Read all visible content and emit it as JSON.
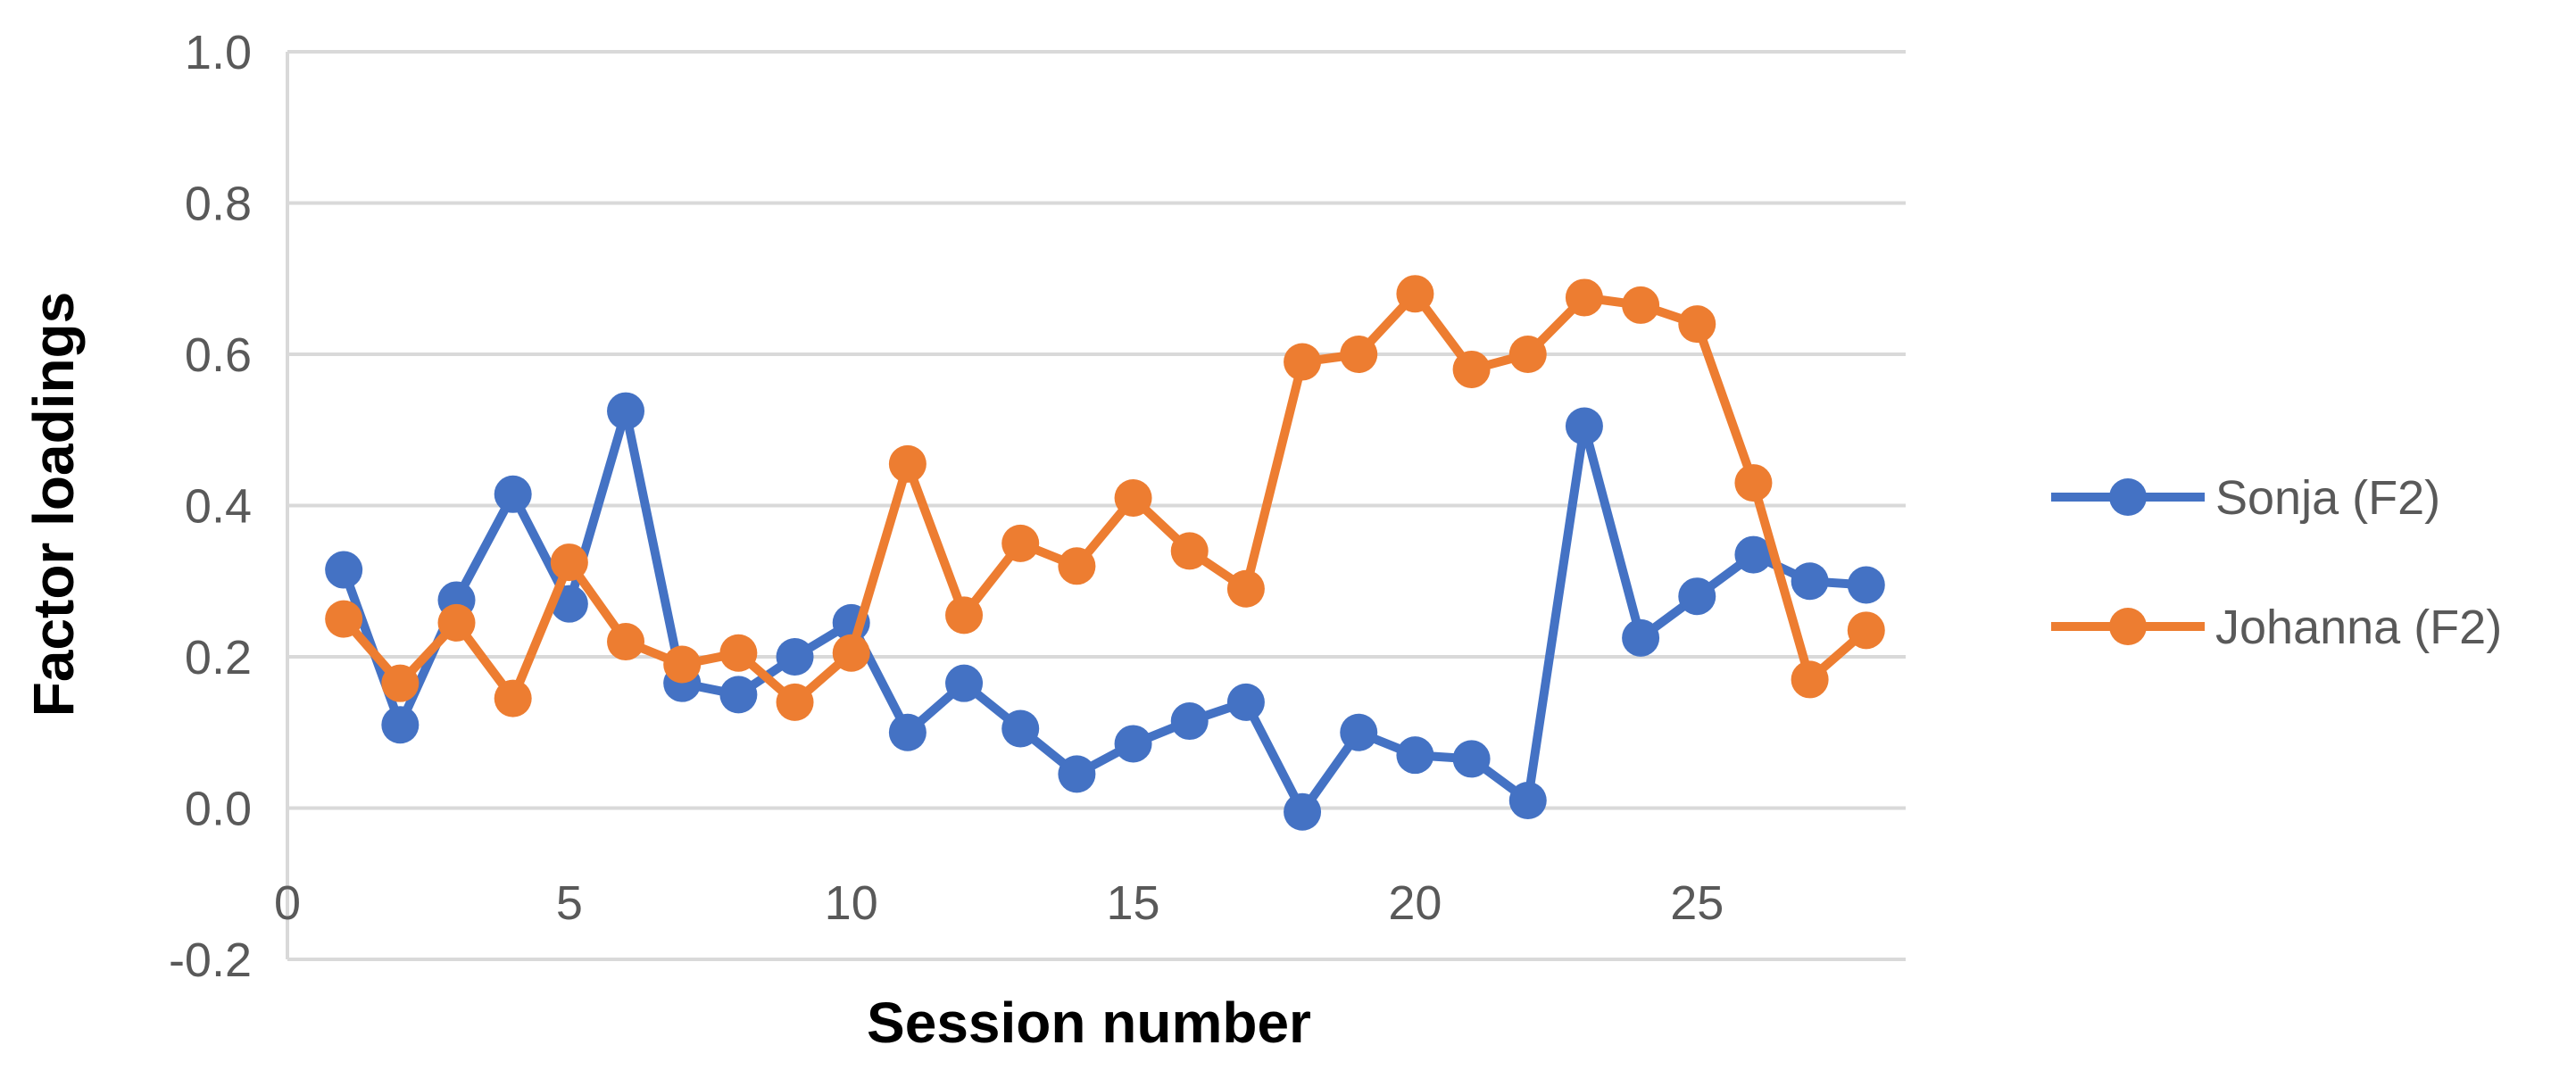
{
  "chart_data": {
    "type": "line",
    "title": "",
    "xlabel": "Session number",
    "ylabel": "Factor loadings",
    "xlim": [
      0,
      28.7
    ],
    "ylim": [
      -0.2,
      1.0
    ],
    "x_ticks": [
      "0",
      "5",
      "10",
      "15",
      "20",
      "25"
    ],
    "y_ticks": [
      "-0.2",
      "0.0",
      "0.2",
      "0.4",
      "0.6",
      "0.8",
      "1.0"
    ],
    "grid": "horizontal",
    "legend_position": "right",
    "x": [
      1,
      2,
      3,
      4,
      5,
      6,
      7,
      8,
      9,
      10,
      11,
      12,
      13,
      14,
      15,
      16,
      17,
      18,
      19,
      20,
      21,
      22,
      23,
      24,
      25,
      26,
      27,
      28
    ],
    "series": [
      {
        "name": "Sonja (F2)",
        "color": "#4472C4",
        "values": [
          0.315,
          0.11,
          0.275,
          0.415,
          0.27,
          0.525,
          0.165,
          0.15,
          0.2,
          0.245,
          0.1,
          0.165,
          0.105,
          0.045,
          0.085,
          0.115,
          0.14,
          -0.005,
          0.1,
          0.07,
          0.065,
          0.01,
          0.505,
          0.225,
          0.28,
          0.335,
          0.3,
          0.295
        ]
      },
      {
        "name": "Johanna (F2)",
        "color": "#ED7D31",
        "values": [
          0.25,
          0.165,
          0.245,
          0.145,
          0.325,
          0.22,
          0.19,
          0.205,
          0.14,
          0.205,
          0.455,
          0.255,
          0.35,
          0.32,
          0.41,
          0.34,
          0.29,
          0.59,
          0.6,
          0.68,
          0.58,
          0.6,
          0.675,
          0.665,
          0.64,
          0.43,
          0.17,
          0.235
        ]
      }
    ]
  }
}
